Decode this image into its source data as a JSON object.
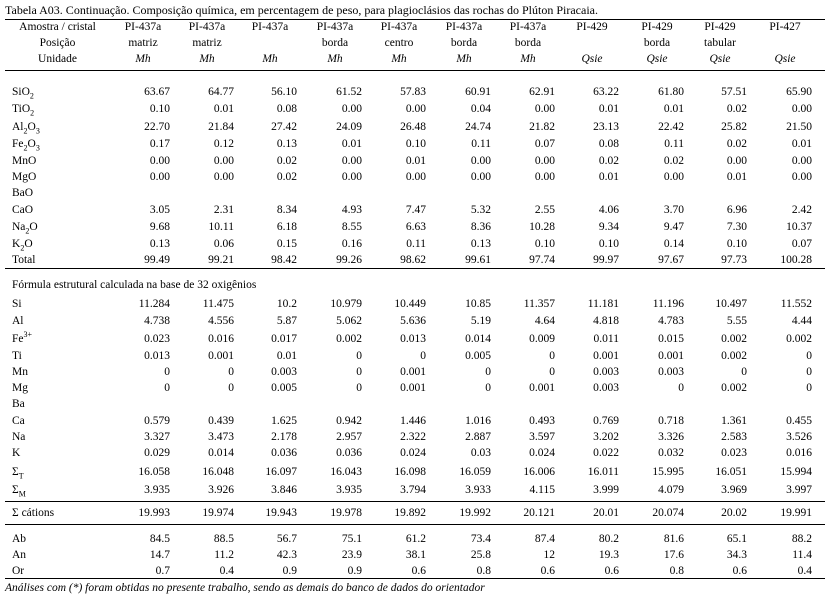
{
  "caption": "Tabela A03. Continuação. Composição química, em percentagem de peso, para plagioclásios das rochas do Plúton Piracaia.",
  "row_header": [
    "Amostra / cristal",
    "Posição",
    "Unidade"
  ],
  "columns": [
    {
      "sample": "PI-437a",
      "position": "matriz",
      "unit": "Mh"
    },
    {
      "sample": "PI-437a",
      "position": "matriz",
      "unit": "Mh"
    },
    {
      "sample": "PI-437a",
      "position": "",
      "unit": "Mh"
    },
    {
      "sample": "PI-437a",
      "position": "borda",
      "unit": "Mh"
    },
    {
      "sample": "PI-437a",
      "position": "centro",
      "unit": "Mh"
    },
    {
      "sample": "PI-437a",
      "position": "borda",
      "unit": "Mh"
    },
    {
      "sample": "PI-437a",
      "position": "borda",
      "unit": "Mh"
    },
    {
      "sample": "PI-429",
      "position": "",
      "unit": "Qsie"
    },
    {
      "sample": "PI-429",
      "position": "borda",
      "unit": "Qsie"
    },
    {
      "sample": "PI-429",
      "position": "tabular",
      "unit": "Qsie"
    },
    {
      "sample": "PI-427",
      "position": "",
      "unit": "Qsie"
    }
  ],
  "oxides": [
    {
      "base": "SiO",
      "sub": "2",
      "sup": "",
      "values": [
        "63.67",
        "64.77",
        "56.10",
        "61.52",
        "57.83",
        "60.91",
        "62.91",
        "63.22",
        "61.80",
        "57.51",
        "65.90"
      ]
    },
    {
      "base": "TiO",
      "sub": "2",
      "sup": "",
      "values": [
        "0.10",
        "0.01",
        "0.08",
        "0.00",
        "0.00",
        "0.04",
        "0.00",
        "0.01",
        "0.01",
        "0.02",
        "0.00"
      ]
    },
    {
      "base": "Al",
      "sub": "2",
      "tail": "O",
      "sub2": "3",
      "sup": "",
      "values": [
        "22.70",
        "21.84",
        "27.42",
        "24.09",
        "26.48",
        "24.74",
        "21.82",
        "23.13",
        "22.42",
        "25.82",
        "21.50"
      ]
    },
    {
      "base": "Fe",
      "sub": "2",
      "tail": "O",
      "sub2": "3",
      "sup": "",
      "values": [
        "0.17",
        "0.12",
        "0.13",
        "0.01",
        "0.10",
        "0.11",
        "0.07",
        "0.08",
        "0.11",
        "0.02",
        "0.01"
      ]
    },
    {
      "base": "MnO",
      "sub": "",
      "sup": "",
      "values": [
        "0.00",
        "0.00",
        "0.02",
        "0.00",
        "0.01",
        "0.00",
        "0.00",
        "0.02",
        "0.02",
        "0.00",
        "0.00"
      ]
    },
    {
      "base": "MgO",
      "sub": "",
      "sup": "",
      "values": [
        "0.00",
        "0.00",
        "0.02",
        "0.00",
        "0.00",
        "0.00",
        "0.00",
        "0.01",
        "0.00",
        "0.01",
        "0.00"
      ]
    },
    {
      "base": "BaO",
      "sub": "",
      "sup": "",
      "values": [
        "",
        "",
        "",
        "",
        "",
        "",
        "",
        "",
        "",
        "",
        ""
      ]
    },
    {
      "base": "CaO",
      "sub": "",
      "sup": "",
      "values": [
        "3.05",
        "2.31",
        "8.34",
        "4.93",
        "7.47",
        "5.32",
        "2.55",
        "4.06",
        "3.70",
        "6.96",
        "2.42"
      ]
    },
    {
      "base": "Na",
      "sub": "2",
      "tail": "O",
      "sup": "",
      "values": [
        "9.68",
        "10.11",
        "6.18",
        "8.55",
        "6.63",
        "8.36",
        "10.28",
        "9.34",
        "9.47",
        "7.30",
        "10.37"
      ]
    },
    {
      "base": "K",
      "sub": "2",
      "tail": "O",
      "sup": "",
      "values": [
        "0.13",
        "0.06",
        "0.15",
        "0.16",
        "0.11",
        "0.13",
        "0.10",
        "0.10",
        "0.14",
        "0.10",
        "0.07"
      ]
    },
    {
      "base": "Total",
      "sub": "",
      "sup": "",
      "values": [
        "99.49",
        "99.21",
        "98.42",
        "99.26",
        "98.62",
        "99.61",
        "97.74",
        "99.97",
        "97.67",
        "97.73",
        "100.28"
      ]
    }
  ],
  "formula_title": "Fórmula estrutural calculada na base de 32 oxigênios",
  "cations": [
    {
      "base": "Si",
      "sup": "",
      "values": [
        "11.284",
        "11.475",
        "10.2",
        "10.979",
        "10.449",
        "10.85",
        "11.357",
        "11.181",
        "11.196",
        "10.497",
        "11.552"
      ]
    },
    {
      "base": "Al",
      "sup": "",
      "values": [
        "4.738",
        "4.556",
        "5.87",
        "5.062",
        "5.636",
        "5.19",
        "4.64",
        "4.818",
        "4.783",
        "5.55",
        "4.44"
      ]
    },
    {
      "base": "Fe",
      "sup": "3+",
      "values": [
        "0.023",
        "0.016",
        "0.017",
        "0.002",
        "0.013",
        "0.014",
        "0.009",
        "0.011",
        "0.015",
        "0.002",
        "0.002"
      ]
    },
    {
      "base": "Ti",
      "sup": "",
      "values": [
        "0.013",
        "0.001",
        "0.01",
        "0",
        "0",
        "0.005",
        "0",
        "0.001",
        "0.001",
        "0.002",
        "0"
      ]
    },
    {
      "base": "Mn",
      "sup": "",
      "values": [
        "0",
        "0",
        "0.003",
        "0",
        "0.001",
        "0",
        "0",
        "0.003",
        "0.003",
        "0",
        "0"
      ]
    },
    {
      "base": "Mg",
      "sup": "",
      "values": [
        "0",
        "0",
        "0.005",
        "0",
        "0.001",
        "0",
        "0.001",
        "0.003",
        "0",
        "0.002",
        "0"
      ]
    },
    {
      "base": "Ba",
      "sup": "",
      "values": [
        "",
        "",
        "",
        "",
        "",
        "",
        "",
        "",
        "",
        "",
        ""
      ]
    },
    {
      "base": "Ca",
      "sup": "",
      "values": [
        "0.579",
        "0.439",
        "1.625",
        "0.942",
        "1.446",
        "1.016",
        "0.493",
        "0.769",
        "0.718",
        "1.361",
        "0.455"
      ]
    },
    {
      "base": "Na",
      "sup": "",
      "values": [
        "3.327",
        "3.473",
        "2.178",
        "2.957",
        "2.322",
        "2.887",
        "3.597",
        "3.202",
        "3.326",
        "2.583",
        "3.526"
      ]
    },
    {
      "base": "K",
      "sup": "",
      "values": [
        "0.029",
        "0.014",
        "0.036",
        "0.036",
        "0.024",
        "0.03",
        "0.024",
        "0.022",
        "0.032",
        "0.023",
        "0.016"
      ]
    }
  ],
  "sums": [
    {
      "base": "Σ",
      "sub": "T",
      "values": [
        "16.058",
        "16.048",
        "16.097",
        "16.043",
        "16.098",
        "16.059",
        "16.006",
        "16.011",
        "15.995",
        "16.051",
        "15.994"
      ]
    },
    {
      "base": "Σ",
      "sub": "M",
      "values": [
        "3.935",
        "3.926",
        "3.846",
        "3.935",
        "3.794",
        "3.933",
        "4.115",
        "3.999",
        "4.079",
        "3.969",
        "3.997"
      ]
    }
  ],
  "cation_sum": {
    "label": "Σ cátions",
    "values": [
      "19.993",
      "19.974",
      "19.943",
      "19.978",
      "19.892",
      "19.992",
      "20.121",
      "20.01",
      "20.074",
      "20.02",
      "19.991"
    ]
  },
  "endmembers": [
    {
      "label": "Ab",
      "values": [
        "84.5",
        "88.5",
        "56.7",
        "75.1",
        "61.2",
        "73.4",
        "87.4",
        "80.2",
        "81.6",
        "65.1",
        "88.2"
      ]
    },
    {
      "label": "An",
      "values": [
        "14.7",
        "11.2",
        "42.3",
        "23.9",
        "38.1",
        "25.8",
        "12",
        "19.3",
        "17.6",
        "34.3",
        "11.4"
      ]
    },
    {
      "label": "Or",
      "values": [
        "0.7",
        "0.4",
        "0.9",
        "0.9",
        "0.6",
        "0.8",
        "0.6",
        "0.6",
        "0.8",
        "0.6",
        "0.4"
      ]
    }
  ],
  "footnote": "Análises com (*) foram obtidas no presente trabalho, sendo as demais do banco de dados do orientador"
}
